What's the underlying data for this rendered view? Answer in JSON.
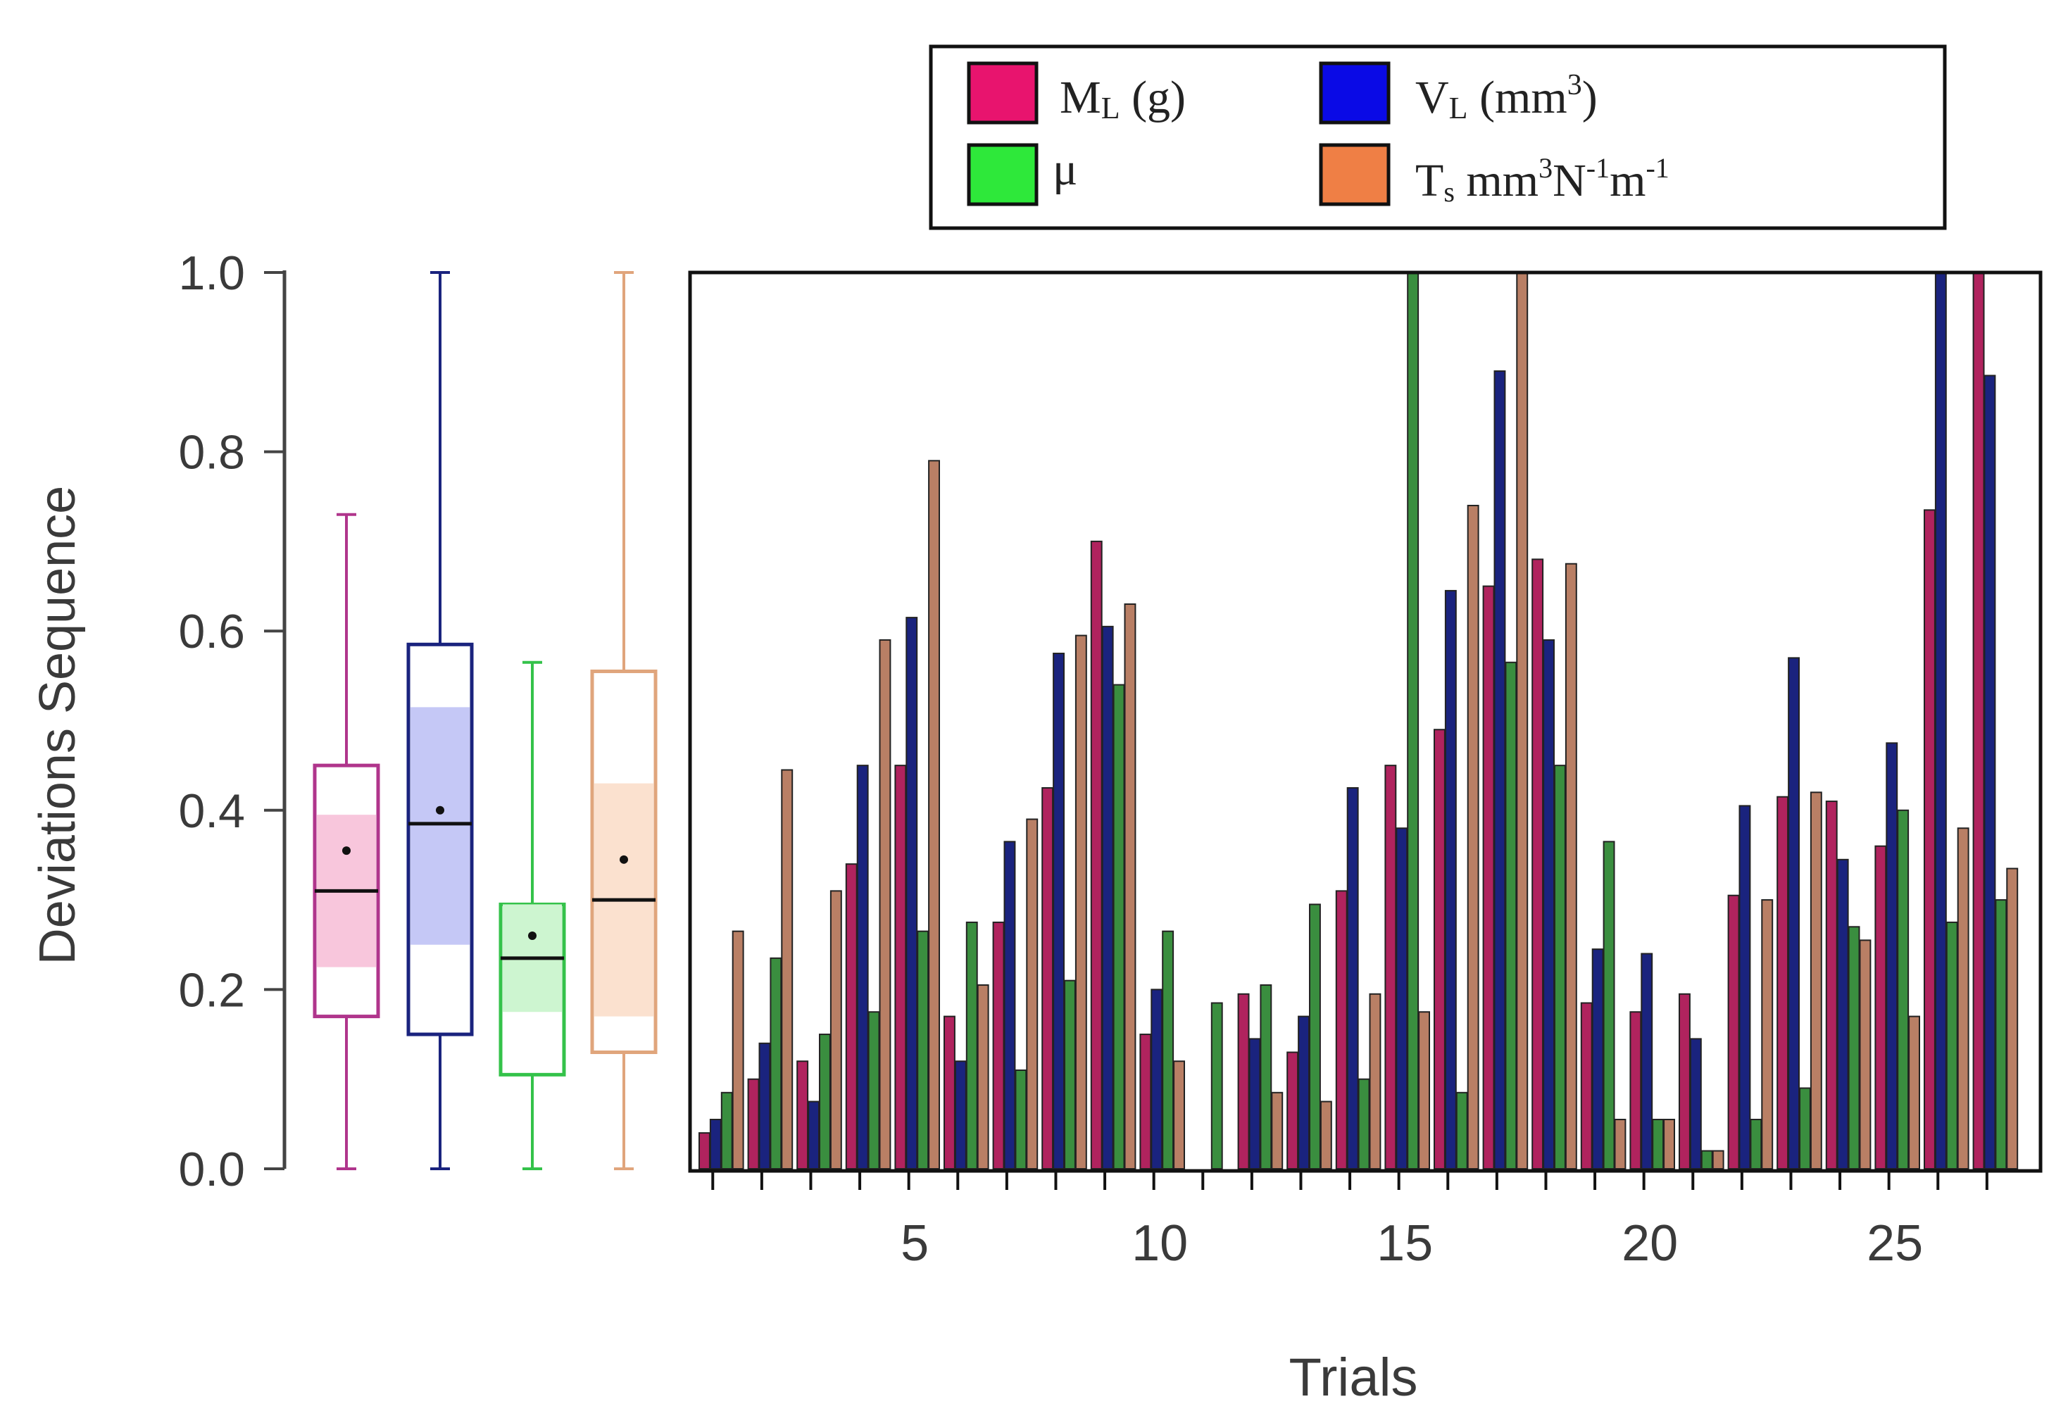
{
  "chart_data": {
    "type": "bar",
    "ylabel": "Deviations Sequence",
    "xlabel": "Trials",
    "ylim": [
      0,
      1
    ],
    "y_ticks": [
      "0.0",
      "0.2",
      "0.4",
      "0.6",
      "0.8",
      "1.0"
    ],
    "x_ticks": [
      "5",
      "10",
      "15",
      "20",
      "25"
    ],
    "x_tick_values": [
      5,
      10,
      15,
      20,
      25
    ],
    "trials": [
      1,
      2,
      3,
      4,
      5,
      6,
      7,
      8,
      9,
      10,
      11,
      12,
      13,
      14,
      15,
      16,
      17,
      18,
      19,
      20,
      21,
      22,
      23,
      24,
      25,
      26,
      27
    ],
    "legend": {
      "ml": {
        "main": "M",
        "sub": "L",
        "rest": " (g)"
      },
      "vl": {
        "main": "V",
        "sub": "L",
        "rest": " (mm",
        "sup": "3",
        "close": ")"
      },
      "mu": {
        "main": "μ"
      },
      "ts": {
        "main": "T",
        "sub": "s",
        "rest": " mm",
        "sup1": "3",
        "mid": "N",
        "sup2": "-1",
        "mid2": "m",
        "sup3": "-1"
      }
    },
    "series": [
      {
        "name": "ML (g)",
        "color": "#b0235e",
        "values": [
          0.04,
          0.1,
          0.12,
          0.34,
          0.45,
          0.17,
          0.275,
          0.425,
          0.7,
          0.15,
          0.0,
          0.195,
          0.13,
          0.31,
          0.45,
          0.49,
          0.65,
          0.68,
          0.185,
          0.175,
          0.195,
          0.305,
          0.415,
          0.41,
          0.36,
          0.735,
          1.0
        ]
      },
      {
        "name": "VL (mm3)",
        "color": "#1a237e",
        "values": [
          0.055,
          0.14,
          0.075,
          0.45,
          0.615,
          0.12,
          0.365,
          0.575,
          0.605,
          0.2,
          0.0,
          0.145,
          0.17,
          0.425,
          0.38,
          0.645,
          0.89,
          0.59,
          0.245,
          0.24,
          0.145,
          0.405,
          0.57,
          0.345,
          0.475,
          1.0,
          0.885
        ]
      },
      {
        "name": "μ",
        "color": "#3a8e3f",
        "values": [
          0.085,
          0.235,
          0.15,
          0.175,
          0.265,
          0.275,
          0.11,
          0.21,
          0.54,
          0.265,
          0.185,
          0.205,
          0.295,
          0.1,
          1.0,
          0.085,
          0.565,
          0.45,
          0.365,
          0.055,
          0.02,
          0.055,
          0.09,
          0.27,
          0.4,
          0.275,
          0.3
        ]
      },
      {
        "name": "Ts mm3N-1m-1",
        "color": "#b97f65",
        "values": [
          0.265,
          0.445,
          0.31,
          0.59,
          0.79,
          0.205,
          0.39,
          0.595,
          0.63,
          0.12,
          0.0,
          0.085,
          0.075,
          0.195,
          0.175,
          0.74,
          1.0,
          0.675,
          0.055,
          0.055,
          0.02,
          0.3,
          0.42,
          0.255,
          0.17,
          0.38,
          0.335
        ]
      }
    ],
    "boxplots": [
      {
        "name": "ML (g)",
        "color": "#b0358c",
        "fill": "#f8c6dc",
        "min": 0.0,
        "q1": 0.17,
        "ci_low": 0.225,
        "median": 0.31,
        "ci_high": 0.395,
        "q3": 0.45,
        "max": 0.73,
        "mean": 0.355
      },
      {
        "name": "VL (mm3)",
        "color": "#1a237e",
        "fill": "#c5c8f6",
        "min": 0.0,
        "q1": 0.15,
        "ci_low": 0.25,
        "median": 0.385,
        "ci_high": 0.515,
        "q3": 0.585,
        "max": 1.0,
        "mean": 0.4
      },
      {
        "name": "μ",
        "color": "#34c24a",
        "fill": "#cdf5d0",
        "min": 0.0,
        "q1": 0.105,
        "ci_low": 0.175,
        "median": 0.235,
        "ci_high": 0.295,
        "q3": 0.295,
        "max": 0.565,
        "mean": 0.26
      },
      {
        "name": "Ts mm3N-1m-1",
        "color": "#e0a57c",
        "fill": "#fbe1cf",
        "min": 0.0,
        "q1": 0.13,
        "ci_low": 0.17,
        "median": 0.3,
        "ci_high": 0.43,
        "q3": 0.555,
        "max": 1.0,
        "mean": 0.345
      }
    ]
  },
  "legend_colors": {
    "ml": "#e8146e",
    "vl": "#0a0ae6",
    "mu": "#2ee83a",
    "ts": "#ef7f45"
  }
}
